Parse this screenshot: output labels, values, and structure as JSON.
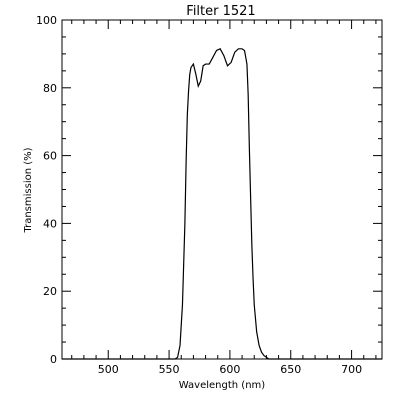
{
  "chart_data": {
    "type": "line",
    "title": "Filter 1521",
    "xlabel": "Wavelength (nm)",
    "ylabel": "Transmission (%)",
    "xlim": [
      462,
      725
    ],
    "ylim": [
      0,
      100
    ],
    "xticks": [
      500,
      550,
      600,
      650,
      700
    ],
    "yticks": [
      0,
      20,
      40,
      60,
      80,
      100
    ],
    "grid": false,
    "series": [
      {
        "values_x": [
          462,
          555,
          557,
          559,
          561,
          563,
          564,
          565,
          566,
          567,
          568,
          570,
          572,
          574,
          576,
          578,
          580,
          583,
          586,
          589,
          592,
          595,
          598,
          601,
          604,
          607,
          610,
          612,
          614,
          615,
          616,
          617,
          618,
          619,
          620,
          622,
          624,
          626,
          628,
          630,
          632,
          725
        ],
        "values_y": [
          0,
          0,
          0.5,
          4,
          16,
          40,
          58,
          72,
          79,
          84,
          86,
          87,
          84,
          80.5,
          82,
          86.5,
          87,
          87,
          89,
          91,
          91.5,
          89.5,
          86.5,
          87.5,
          90.5,
          91.5,
          91.5,
          91,
          87,
          78,
          62,
          48,
          34,
          24,
          16,
          8,
          4,
          2,
          1,
          0.5,
          0,
          0
        ],
        "color": "#000000"
      }
    ]
  }
}
